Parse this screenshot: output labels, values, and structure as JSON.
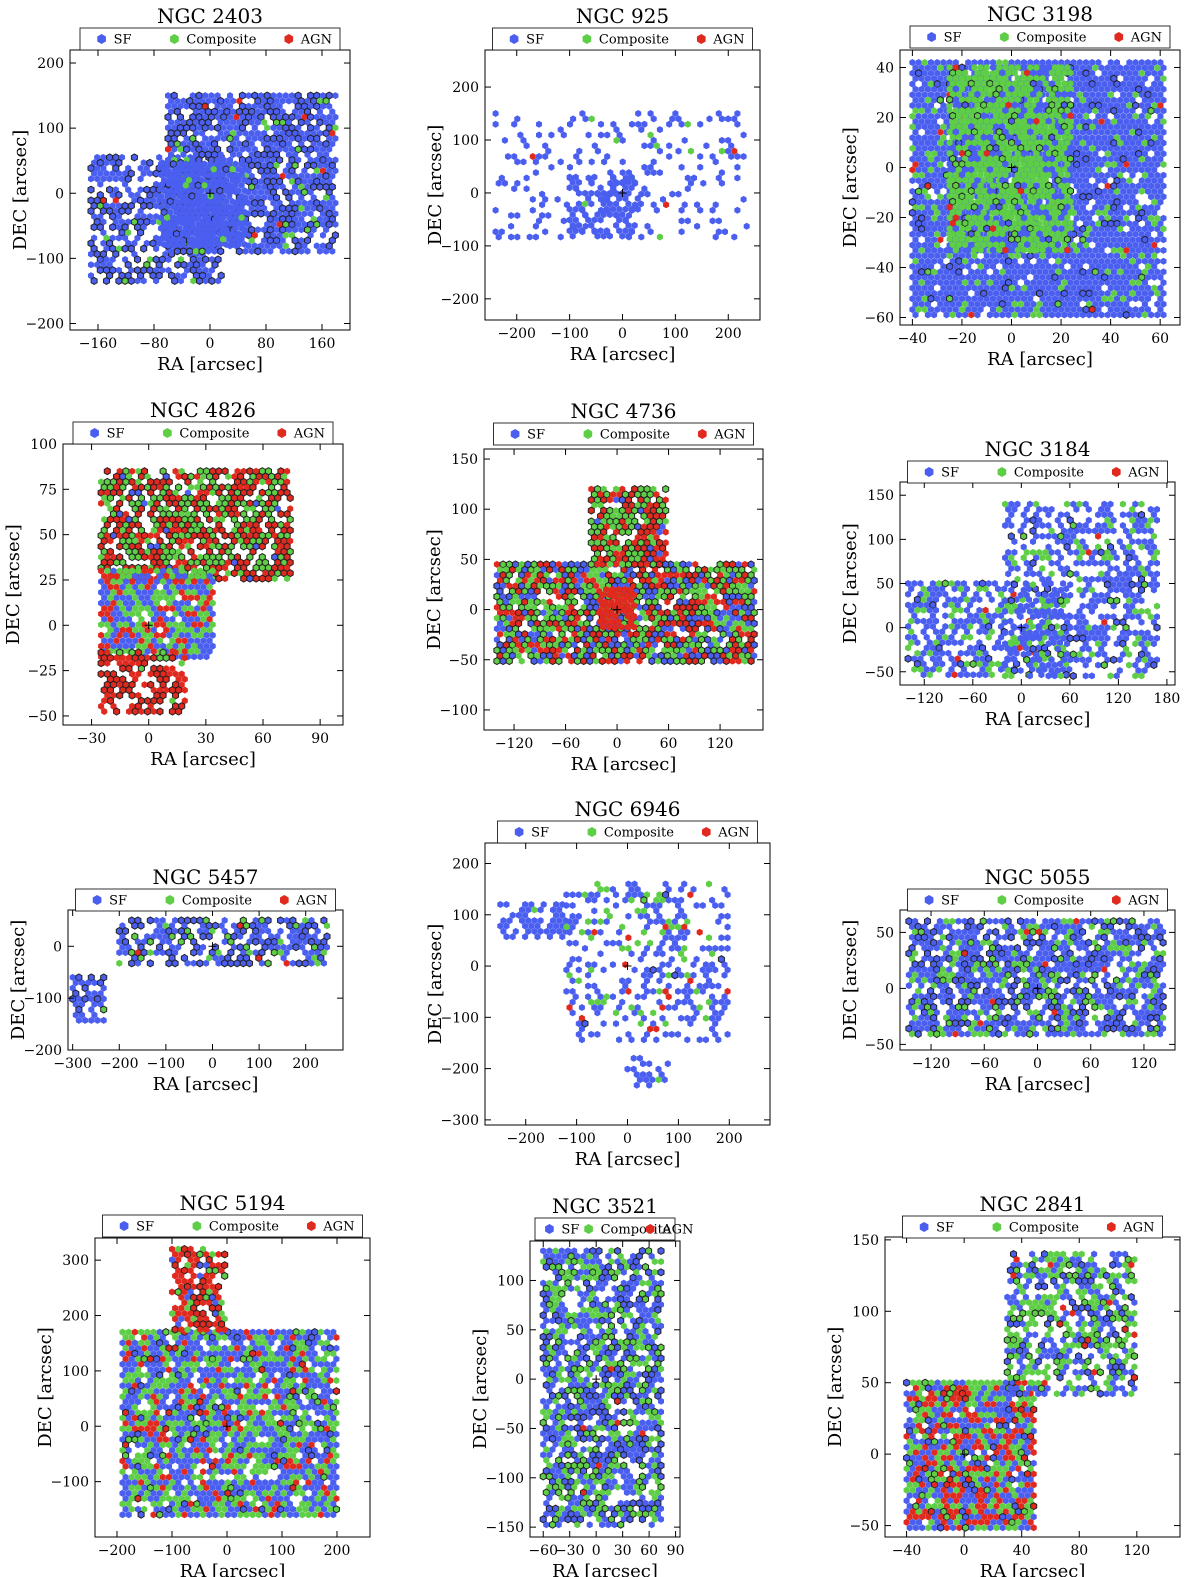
{
  "colors": {
    "sf": "#4a5ef0",
    "composite": "#5ece46",
    "agn": "#e0291f",
    "outline": "#222222",
    "background": "#ffffff"
  },
  "legend_labels": [
    "SF",
    "Composite",
    "AGN"
  ],
  "chart_data": [
    {
      "type": "scatter",
      "title": "NGC 2403",
      "xlabel": "RA [arcsec]",
      "ylabel": "DEC [arcsec]",
      "xlim": [
        -200,
        200
      ],
      "ylim": [
        -210,
        220
      ],
      "xticks": [
        -160,
        -80,
        0,
        80,
        160
      ],
      "yticks": [
        -200,
        -100,
        0,
        100,
        200
      ],
      "xtick_labels": [
        "−160",
        "−80",
        "0",
        "80",
        "160"
      ],
      "ytick_labels": [
        "−200",
        "−100",
        "0",
        "100",
        "200"
      ],
      "series": [
        "SF",
        "Composite",
        "AGN"
      ],
      "regions": [
        {
          "x": [
            -170,
            20
          ],
          "y": [
            -135,
            55
          ],
          "sf": 0.62,
          "comp": 0.04,
          "agn": 0.01,
          "outlined": 0.45
        },
        {
          "x": [
            -60,
            180
          ],
          "y": [
            -90,
            150
          ],
          "sf": 0.72,
          "comp": 0.04,
          "agn": 0.01,
          "outlined": 0.35
        },
        {
          "x": [
            -70,
            50
          ],
          "y": [
            -80,
            45
          ],
          "sf": 0.9,
          "comp": 0.05,
          "agn": 0.0,
          "outlined": 0.05
        }
      ]
    },
    {
      "type": "scatter",
      "title": "NGC 925",
      "xlabel": "RA [arcsec]",
      "ylabel": "DEC [arcsec]",
      "xlim": [
        -260,
        260
      ],
      "ylim": [
        -240,
        270
      ],
      "xticks": [
        -200,
        -100,
        0,
        100,
        200
      ],
      "yticks": [
        -200,
        -100,
        0,
        100,
        200
      ],
      "xtick_labels": [
        "−200",
        "−100",
        "0",
        "100",
        "200"
      ],
      "ytick_labels": [
        "−200",
        "−100",
        "0",
        "100",
        "200"
      ],
      "series": [
        "SF",
        "Composite",
        "AGN"
      ],
      "regions": [
        {
          "x": [
            -240,
            240
          ],
          "y": [
            -90,
            150
          ],
          "sf": 0.22,
          "comp": 0.01,
          "agn": 0.005,
          "outlined": 0.0
        },
        {
          "x": [
            -100,
            40
          ],
          "y": [
            -90,
            30
          ],
          "sf": 0.55,
          "comp": 0.02,
          "agn": 0.0,
          "outlined": 0.0
        }
      ]
    },
    {
      "type": "scatter",
      "title": "NGC 3198",
      "xlabel": "RA [arcsec]",
      "ylabel": "DEC [arcsec]",
      "xlim": [
        -45,
        68
      ],
      "ylim": [
        -63,
        47
      ],
      "xticks": [
        -40,
        -20,
        0,
        20,
        40,
        60
      ],
      "yticks": [
        -60,
        -40,
        -20,
        0,
        20,
        40
      ],
      "xtick_labels": [
        "−40",
        "−20",
        "0",
        "20",
        "40",
        "60"
      ],
      "ytick_labels": [
        "−60",
        "−40",
        "−20",
        "0",
        "20",
        "40"
      ],
      "series": [
        "SF",
        "Composite",
        "AGN"
      ],
      "regions": [
        {
          "x": [
            -40,
            62
          ],
          "y": [
            -60,
            42
          ],
          "sf": 0.8,
          "comp": 0.12,
          "agn": 0.01,
          "outlined": 0.06
        },
        {
          "x": [
            -25,
            25
          ],
          "y": [
            -35,
            40
          ],
          "sf": 0.2,
          "comp": 0.7,
          "agn": 0.02,
          "outlined": 0.1
        }
      ]
    },
    {
      "type": "scatter",
      "title": "NGC 4826",
      "xlabel": "RA [arcsec]",
      "ylabel": "DEC [arcsec]",
      "xlim": [
        -45,
        102
      ],
      "ylim": [
        -55,
        100
      ],
      "xticks": [
        -30,
        0,
        30,
        60,
        90
      ],
      "yticks": [
        -50,
        -25,
        0,
        25,
        50,
        75,
        100
      ],
      "xtick_labels": [
        "−30",
        "0",
        "30",
        "60",
        "90"
      ],
      "ytick_labels": [
        "−50",
        "−25",
        "0",
        "25",
        "50",
        "75",
        "100"
      ],
      "series": [
        "SF",
        "Composite",
        "AGN"
      ],
      "regions": [
        {
          "x": [
            -25,
            75
          ],
          "y": [
            25,
            85
          ],
          "sf": 0.03,
          "comp": 0.35,
          "agn": 0.4,
          "outlined": 0.75
        },
        {
          "x": [
            -25,
            35
          ],
          "y": [
            -20,
            30
          ],
          "sf": 0.4,
          "comp": 0.35,
          "agn": 0.2,
          "outlined": 0.0
        },
        {
          "x": [
            -25,
            20
          ],
          "y": [
            -50,
            -15
          ],
          "sf": 0.0,
          "comp": 0.05,
          "agn": 0.6,
          "outlined": 0.6
        }
      ]
    },
    {
      "type": "scatter",
      "title": "NGC 4736",
      "xlabel": "RA [arcsec]",
      "ylabel": "DEC [arcsec]",
      "xlim": [
        -155,
        170
      ],
      "ylim": [
        -120,
        160
      ],
      "xticks": [
        -120,
        -60,
        0,
        60,
        120
      ],
      "yticks": [
        -100,
        -50,
        0,
        50,
        100,
        150
      ],
      "xtick_labels": [
        "−120",
        "−60",
        "0",
        "60",
        "120"
      ],
      "ytick_labels": [
        "−100",
        "−50",
        "0",
        "50",
        "100",
        "150"
      ],
      "series": [
        "SF",
        "Composite",
        "AGN"
      ],
      "regions": [
        {
          "x": [
            -140,
            160
          ],
          "y": [
            -55,
            45
          ],
          "sf": 0.25,
          "comp": 0.35,
          "agn": 0.3,
          "outlined": 0.5
        },
        {
          "x": [
            -30,
            60
          ],
          "y": [
            40,
            120
          ],
          "sf": 0.05,
          "comp": 0.35,
          "agn": 0.45,
          "outlined": 0.6
        },
        {
          "x": [
            -20,
            20
          ],
          "y": [
            -20,
            20
          ],
          "sf": 0.0,
          "comp": 0.05,
          "agn": 0.8,
          "outlined": 0.0
        }
      ]
    },
    {
      "type": "scatter",
      "title": "NGC 3184",
      "xlabel": "RA [arcsec]",
      "ylabel": "DEC [arcsec]",
      "xlim": [
        -150,
        190
      ],
      "ylim": [
        -65,
        165
      ],
      "xticks": [
        -120,
        -60,
        0,
        60,
        120,
        180
      ],
      "yticks": [
        -50,
        0,
        50,
        100,
        150
      ],
      "xtick_labels": [
        "−120",
        "−60",
        "0",
        "60",
        "120",
        "180"
      ],
      "ytick_labels": [
        "−50",
        "0",
        "50",
        "100",
        "150"
      ],
      "series": [
        "SF",
        "Composite",
        "AGN"
      ],
      "regions": [
        {
          "x": [
            -140,
            60
          ],
          "y": [
            -55,
            50
          ],
          "sf": 0.42,
          "comp": 0.18,
          "agn": 0.02,
          "outlined": 0.1
        },
        {
          "x": [
            -20,
            170
          ],
          "y": [
            -55,
            140
          ],
          "sf": 0.45,
          "comp": 0.12,
          "agn": 0.005,
          "outlined": 0.1
        }
      ]
    },
    {
      "type": "scatter",
      "title": "NGC 5457",
      "xlabel": "RA [arcsec]",
      "ylabel": "DEC [arcsec]",
      "xlim": [
        -310,
        280
      ],
      "ylim": [
        -200,
        70
      ],
      "xticks": [
        -300,
        -200,
        -100,
        0,
        100,
        200
      ],
      "yticks": [
        -200,
        -100,
        0
      ],
      "xtick_labels": [
        "−300",
        "−200",
        "−100",
        "0",
        "100",
        "200"
      ],
      "ytick_labels": [
        "−200",
        "−100",
        "0"
      ],
      "series": [
        "SF",
        "Composite",
        "AGN"
      ],
      "regions": [
        {
          "x": [
            -200,
            250
          ],
          "y": [
            -40,
            50
          ],
          "sf": 0.55,
          "comp": 0.12,
          "agn": 0.01,
          "outlined": 0.4
        },
        {
          "x": [
            -300,
            -230
          ],
          "y": [
            -150,
            -60
          ],
          "sf": 0.7,
          "comp": 0.03,
          "agn": 0.0,
          "outlined": 0.3
        }
      ]
    },
    {
      "type": "scatter",
      "title": "NGC 6946",
      "xlabel": "RA [arcsec]",
      "ylabel": "DEC [arcsec]",
      "xlim": [
        -280,
        280
      ],
      "ylim": [
        -310,
        240
      ],
      "xticks": [
        -200,
        -100,
        0,
        100,
        200
      ],
      "yticks": [
        -300,
        -200,
        -100,
        0,
        100,
        200
      ],
      "xtick_labels": [
        "−200",
        "−100",
        "0",
        "100",
        "200"
      ],
      "ytick_labels": [
        "−300",
        "−200",
        "−100",
        "0",
        "100",
        "200"
      ],
      "series": [
        "SF",
        "Composite",
        "AGN"
      ],
      "regions": [
        {
          "x": [
            -250,
            -120
          ],
          "y": [
            50,
            120
          ],
          "sf": 0.6,
          "comp": 0.02,
          "agn": 0.0,
          "outlined": 0.0
        },
        {
          "x": [
            -120,
            200
          ],
          "y": [
            -150,
            160
          ],
          "sf": 0.28,
          "comp": 0.06,
          "agn": 0.02,
          "outlined": 0.05
        },
        {
          "x": [
            0,
            80
          ],
          "y": [
            -240,
            -180
          ],
          "sf": 0.35,
          "comp": 0.03,
          "agn": 0.0,
          "outlined": 0.0
        }
      ]
    },
    {
      "type": "scatter",
      "title": "NGC 5055",
      "xlabel": "RA [arcsec]",
      "ylabel": "DEC [arcsec]",
      "xlim": [
        -155,
        155
      ],
      "ylim": [
        -55,
        70
      ],
      "xticks": [
        -120,
        -60,
        0,
        60,
        120
      ],
      "yticks": [
        -50,
        0,
        50
      ],
      "xtick_labels": [
        "−120",
        "−60",
        "0",
        "60",
        "120"
      ],
      "ytick_labels": [
        "−50",
        "0",
        "50"
      ],
      "series": [
        "SF",
        "Composite",
        "AGN"
      ],
      "regions": [
        {
          "x": [
            -145,
            145
          ],
          "y": [
            -45,
            60
          ],
          "sf": 0.6,
          "comp": 0.2,
          "agn": 0.01,
          "outlined": 0.25
        }
      ]
    },
    {
      "type": "scatter",
      "title": "NGC 5194",
      "xlabel": "RA [arcsec]",
      "ylabel": "DEC [arcsec]",
      "xlim": [
        -240,
        260
      ],
      "ylim": [
        -200,
        340
      ],
      "xticks": [
        -200,
        -100,
        0,
        100,
        200
      ],
      "yticks": [
        -100,
        0,
        100,
        200,
        300
      ],
      "xtick_labels": [
        "−200",
        "−100",
        "0",
        "100",
        "200"
      ],
      "ytick_labels": [
        "−100",
        "0",
        "100",
        "200",
        "300"
      ],
      "series": [
        "SF",
        "Composite",
        "AGN"
      ],
      "regions": [
        {
          "x": [
            -190,
            200
          ],
          "y": [
            -160,
            170
          ],
          "sf": 0.45,
          "comp": 0.35,
          "agn": 0.1,
          "outlined": 0.1
        },
        {
          "x": [
            -100,
            0
          ],
          "y": [
            170,
            320
          ],
          "sf": 0.05,
          "comp": 0.15,
          "agn": 0.6,
          "outlined": 0.3
        }
      ]
    },
    {
      "type": "scatter",
      "title": "NGC 3521",
      "xlabel": "RA [arcsec]",
      "ylabel": "DEC [arcsec]",
      "xlim": [
        -75,
        95
      ],
      "ylim": [
        -160,
        140
      ],
      "xticks": [
        -60,
        -30,
        0,
        30,
        60,
        90
      ],
      "yticks": [
        -150,
        -100,
        -50,
        0,
        50,
        100
      ],
      "xtick_labels": [
        "−60",
        "−30",
        "0",
        "30",
        "60",
        "90"
      ],
      "ytick_labels": [
        "−150",
        "−100",
        "−50",
        "0",
        "50",
        "100"
      ],
      "series": [
        "SF",
        "Composite",
        "AGN"
      ],
      "regions": [
        {
          "x": [
            -60,
            75
          ],
          "y": [
            -150,
            130
          ],
          "sf": 0.45,
          "comp": 0.3,
          "agn": 0.01,
          "outlined": 0.35
        }
      ]
    },
    {
      "type": "scatter",
      "title": "NGC 2841",
      "xlabel": "RA [arcsec]",
      "ylabel": "DEC [arcsec]",
      "xlim": [
        -55,
        150
      ],
      "ylim": [
        -58,
        152
      ],
      "xticks": [
        -40,
        0,
        40,
        80,
        120
      ],
      "yticks": [
        -50,
        0,
        50,
        100,
        150
      ],
      "xtick_labels": [
        "−40",
        "0",
        "40",
        "80",
        "120"
      ],
      "ytick_labels": [
        "−50",
        "0",
        "50",
        "100",
        "150"
      ],
      "series": [
        "SF",
        "Composite",
        "AGN"
      ],
      "regions": [
        {
          "x": [
            -40,
            50
          ],
          "y": [
            -55,
            50
          ],
          "sf": 0.35,
          "comp": 0.3,
          "agn": 0.3,
          "outlined": 0.15
        },
        {
          "x": [
            30,
            120
          ],
          "y": [
            40,
            140
          ],
          "sf": 0.35,
          "comp": 0.3,
          "agn": 0.03,
          "outlined": 0.3
        }
      ]
    }
  ]
}
